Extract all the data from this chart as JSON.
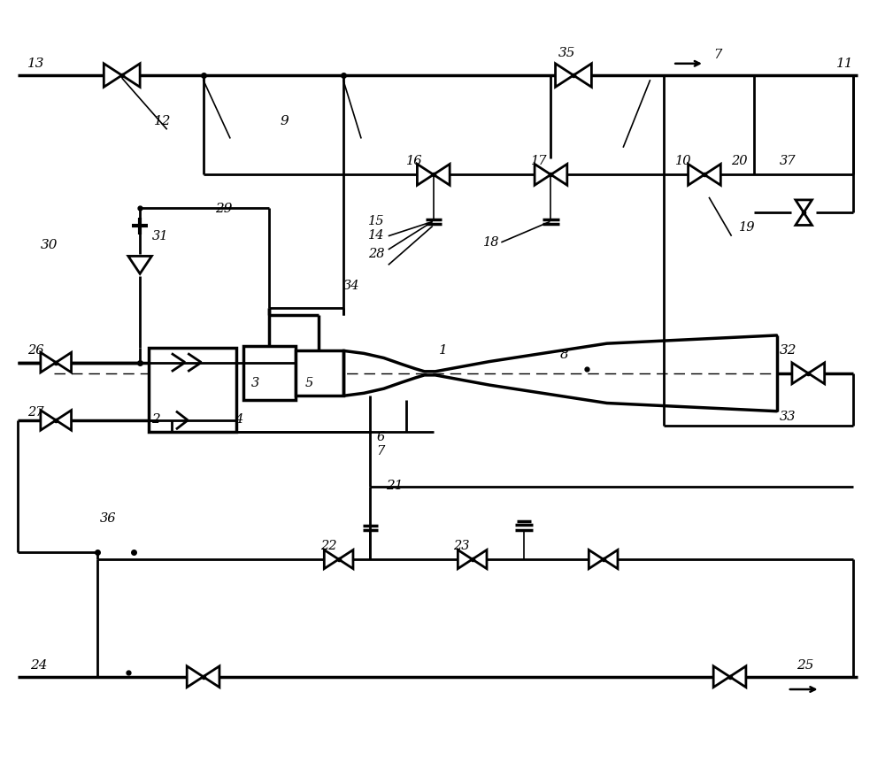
{
  "bg": "#ffffff",
  "lc": "#000000",
  "lw": 2.0,
  "fig_w": 10.0,
  "fig_h": 8.6
}
